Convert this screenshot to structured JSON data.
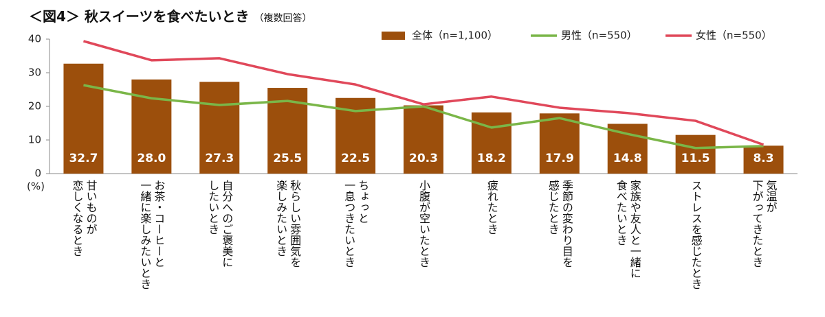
{
  "chart_data": {
    "type": "bar_line",
    "title": "＜図4＞ 秋スイーツを食べたいとき",
    "subtitle": "（複数回答）",
    "y_unit": "(%)",
    "categories": [
      "甘いものが\n恋しくなるとき",
      "お茶・コーヒーと\n一緒に楽しみたいとき",
      "自分へのご褒美に\nしたいとき",
      "秋らしい雰囲気を\n楽しみたいとき",
      "ちょっと\n一息つきたいとき",
      "小腹が空いたとき",
      "疲れたとき",
      "季節の変わり目を\n感じたとき",
      "家族や友人と一緒に\n食べたいとき",
      "ストレスを感じたとき",
      "気温が\n下がってきたとき"
    ],
    "ylim": [
      0,
      40
    ],
    "yticks": [
      0,
      10,
      20,
      30,
      40
    ],
    "series": [
      {
        "name": "全体（n=1,100）",
        "kind": "bar",
        "color": "#9c4f0c",
        "values": [
          32.7,
          28.0,
          27.3,
          25.5,
          22.5,
          20.3,
          18.2,
          17.9,
          14.8,
          11.5,
          8.3
        ],
        "value_labels": [
          "32.7",
          "28.0",
          "27.3",
          "25.5",
          "22.5",
          "20.3",
          "18.2",
          "17.9",
          "14.8",
          "11.5",
          "8.3"
        ]
      },
      {
        "name": "男性（n=550）",
        "kind": "line",
        "color": "#7ab648",
        "values": [
          26.3,
          22.4,
          20.4,
          21.6,
          18.6,
          20.0,
          13.7,
          16.5,
          11.8,
          7.6,
          8.2
        ]
      },
      {
        "name": "女性（n=550）",
        "kind": "line",
        "color": "#e0485a",
        "values": [
          39.4,
          33.7,
          34.3,
          29.6,
          26.5,
          20.6,
          22.9,
          19.6,
          18.0,
          15.7,
          8.6
        ]
      }
    ]
  }
}
